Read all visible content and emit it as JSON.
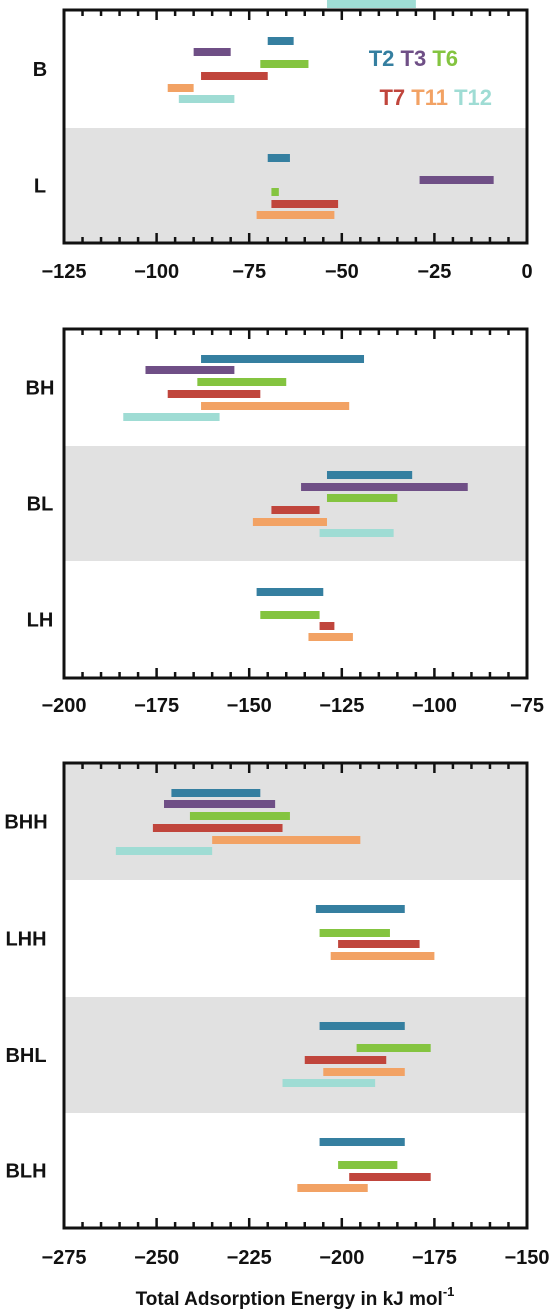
{
  "colors": {
    "T2": "#357fa0",
    "T3": "#6f4f86",
    "T6": "#84c440",
    "T7": "#c0453c",
    "T11": "#f2a264",
    "T12": "#9fdcd4",
    "band": "#e1e1e1"
  },
  "legend": {
    "row1": [
      "T2",
      "T3",
      "T6"
    ],
    "row2": [
      "T7",
      "T11",
      "T12"
    ]
  },
  "xlabel_main": "Total Adsorption Energy in kJ mol",
  "xlabel_sup": "-1",
  "chart_data": [
    {
      "type": "range-bar",
      "xlim": [
        -125,
        0
      ],
      "ticks": [
        -125,
        -100,
        -75,
        -50,
        -25,
        0
      ],
      "categories": [
        {
          "label": "B",
          "shaded": false,
          "bars": [
            {
              "series": "T2",
              "range": [
                -70,
                -63
              ]
            },
            {
              "series": "T3",
              "range": [
                -90,
                -80
              ]
            },
            {
              "series": "T6",
              "range": [
                -72,
                -59
              ]
            },
            {
              "series": "T7",
              "range": [
                -88,
                -70
              ]
            },
            {
              "series": "T11",
              "range": [
                -97,
                -90
              ]
            },
            {
              "series": "T12",
              "range": [
                -94,
                -79
              ]
            }
          ]
        },
        {
          "label": "L",
          "shaded": true,
          "bars": [
            {
              "series": "T2",
              "range": [
                -70,
                -64
              ]
            },
            {
              "series": "T3",
              "range": [
                -29,
                -9
              ]
            },
            {
              "series": "T6",
              "range": [
                -69,
                -67
              ]
            },
            {
              "series": "T7",
              "range": [
                -69,
                -51
              ]
            },
            {
              "series": "T11",
              "range": [
                -73,
                -52
              ]
            },
            {
              "series": "T12",
              "range": [
                -54,
                -30
              ]
            }
          ]
        }
      ]
    },
    {
      "type": "range-bar",
      "xlim": [
        -200,
        -75
      ],
      "ticks": [
        -200,
        -175,
        -150,
        -125,
        -100,
        -75
      ],
      "categories": [
        {
          "label": "BH",
          "shaded": false,
          "bars": [
            {
              "series": "T2",
              "range": [
                -163,
                -119
              ]
            },
            {
              "series": "T3",
              "range": [
                -178,
                -154
              ]
            },
            {
              "series": "T6",
              "range": [
                -164,
                -140
              ]
            },
            {
              "series": "T7",
              "range": [
                -172,
                -147
              ]
            },
            {
              "series": "T11",
              "range": [
                -163,
                -123
              ]
            },
            {
              "series": "T12",
              "range": [
                -184,
                -158
              ]
            }
          ]
        },
        {
          "label": "BL",
          "shaded": true,
          "bars": [
            {
              "series": "T2",
              "range": [
                -129,
                -106
              ]
            },
            {
              "series": "T3",
              "range": [
                -136,
                -91
              ]
            },
            {
              "series": "T6",
              "range": [
                -129,
                -110
              ]
            },
            {
              "series": "T7",
              "range": [
                -144,
                -131
              ]
            },
            {
              "series": "T11",
              "range": [
                -149,
                -129
              ]
            },
            {
              "series": "T12",
              "range": [
                -131,
                -111
              ]
            }
          ]
        },
        {
          "label": "LH",
          "shaded": false,
          "bars": [
            {
              "series": "T2",
              "range": [
                -148,
                -130
              ]
            },
            {
              "series": "T6",
              "range": [
                -147,
                -131
              ]
            },
            {
              "series": "T7",
              "range": [
                -131,
                -127
              ]
            },
            {
              "series": "T11",
              "range": [
                -134,
                -122
              ]
            }
          ]
        }
      ]
    },
    {
      "type": "range-bar",
      "xlim": [
        -275,
        -150
      ],
      "ticks": [
        -275,
        -250,
        -225,
        -200,
        -175,
        -150
      ],
      "xlabel": "Total Adsorption Energy in kJ mol-1",
      "categories": [
        {
          "label": "BHH",
          "shaded": true,
          "bars": [
            {
              "series": "T2",
              "range": [
                -246,
                -222
              ]
            },
            {
              "series": "T3",
              "range": [
                -248,
                -218
              ]
            },
            {
              "series": "T6",
              "range": [
                -241,
                -214
              ]
            },
            {
              "series": "T7",
              "range": [
                -251,
                -216
              ]
            },
            {
              "series": "T11",
              "range": [
                -235,
                -195
              ]
            },
            {
              "series": "T12",
              "range": [
                -261,
                -235
              ]
            }
          ]
        },
        {
          "label": "LHH",
          "shaded": false,
          "bars": [
            {
              "series": "T2",
              "range": [
                -207,
                -183
              ]
            },
            {
              "series": "T6",
              "range": [
                -206,
                -187
              ]
            },
            {
              "series": "T7",
              "range": [
                -201,
                -179
              ]
            },
            {
              "series": "T11",
              "range": [
                -203,
                -175
              ]
            }
          ]
        },
        {
          "label": "BHL",
          "shaded": true,
          "bars": [
            {
              "series": "T2",
              "range": [
                -206,
                -183
              ]
            },
            {
              "series": "T6",
              "range": [
                -196,
                -176
              ]
            },
            {
              "series": "T7",
              "range": [
                -210,
                -188
              ]
            },
            {
              "series": "T11",
              "range": [
                -205,
                -183
              ]
            },
            {
              "series": "T12",
              "range": [
                -216,
                -191
              ]
            }
          ]
        },
        {
          "label": "BLH",
          "shaded": false,
          "bars": [
            {
              "series": "T2",
              "range": [
                -206,
                -183
              ]
            },
            {
              "series": "T6",
              "range": [
                -201,
                -185
              ]
            },
            {
              "series": "T7",
              "range": [
                -198,
                -176
              ]
            },
            {
              "series": "T11",
              "range": [
                -212,
                -193
              ]
            }
          ]
        }
      ]
    }
  ]
}
